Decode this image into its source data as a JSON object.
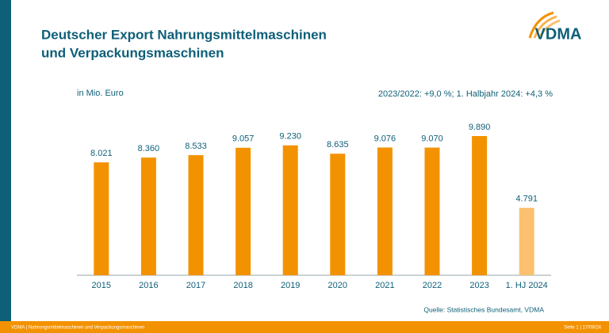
{
  "chart_data": {
    "type": "bar",
    "title": [
      "Deutscher Export Nahrungsmittelmaschinen",
      "und Verpackungsmaschinen"
    ],
    "y_label": "in Mio. Euro",
    "annotation": "2023/2022: +9,0 %; 1. Halbjahr 2024: +4,3 %",
    "source": "Quelle: Statistisches Bundesamt, VDMA",
    "categories": [
      "2015",
      "2016",
      "2017",
      "2018",
      "2019",
      "2020",
      "2021",
      "2022",
      "2023",
      "1. HJ 2024"
    ],
    "values": [
      8021,
      8360,
      8533,
      9057,
      9230,
      8635,
      9076,
      9070,
      9890,
      4791
    ],
    "value_labels": [
      "8.021",
      "8.360",
      "8.533",
      "9.057",
      "9.230",
      "8.635",
      "9.076",
      "9.070",
      "9.890",
      "4.791"
    ],
    "colors": [
      "#f39200",
      "#f39200",
      "#f39200",
      "#f39200",
      "#f39200",
      "#f39200",
      "#f39200",
      "#f39200",
      "#f39200",
      "#fbc070"
    ]
  },
  "logo": "VDMA",
  "footer": {
    "left": "VDMA | Nahrungsmittelmaschinen und Verpackungsmaschinen",
    "right": "Seite 1 | 17/09/24"
  }
}
